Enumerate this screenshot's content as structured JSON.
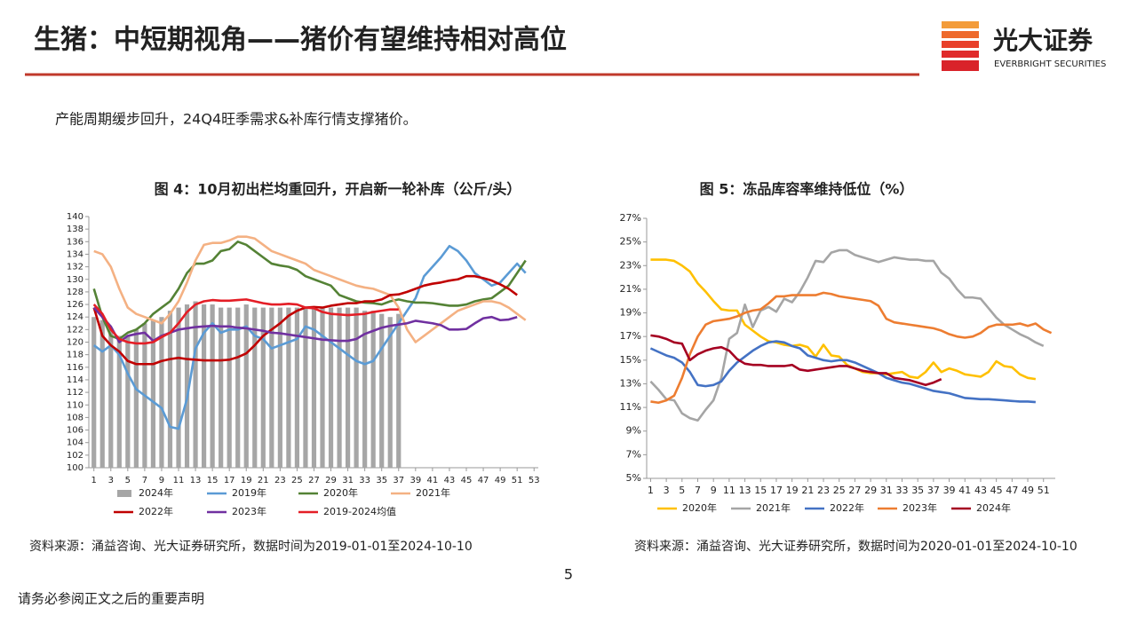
{
  "header": {
    "title": "生猪：中短期视角——猪价有望维持相对高位",
    "logo_name": "光大证券",
    "logo_sub": "EVERBRIGHT SECURITIES"
  },
  "summary": "产能周期缓步回升，24Q4旺季需求&补库行情支撑猪价。",
  "chart_data": [
    {
      "type": "combo",
      "title": "图 4：10月初出栏均重回升，开启新一轮补库（公斤/头）",
      "x": [
        1,
        2,
        3,
        4,
        5,
        6,
        7,
        8,
        9,
        10,
        11,
        12,
        13,
        14,
        15,
        16,
        17,
        18,
        19,
        20,
        21,
        22,
        23,
        24,
        25,
        26,
        27,
        28,
        29,
        30,
        31,
        32,
        33,
        34,
        35,
        36,
        37,
        38,
        39,
        40,
        41,
        42,
        43,
        44,
        45,
        46,
        47,
        48,
        49,
        50,
        51,
        52,
        53
      ],
      "xlim": [
        0.4,
        53.5
      ],
      "xticks": [
        1,
        3,
        5,
        7,
        9,
        11,
        13,
        15,
        17,
        19,
        21,
        23,
        25,
        27,
        29,
        31,
        33,
        35,
        37,
        39,
        41,
        43,
        45,
        47,
        49,
        51,
        53
      ],
      "ylim": [
        100,
        140
      ],
      "yticks": [
        100,
        102,
        104,
        106,
        108,
        110,
        112,
        114,
        116,
        118,
        120,
        122,
        124,
        126,
        128,
        130,
        132,
        134,
        136,
        138,
        140
      ],
      "series": [
        {
          "name": "2024年",
          "type": "bar",
          "color": "#a6a6a6",
          "values": [
            124,
            123.5,
            122,
            121,
            121,
            122,
            123,
            123.5,
            124,
            125,
            125.5,
            126,
            126.5,
            126,
            126,
            125.5,
            125.5,
            125.5,
            126,
            125.5,
            125.5,
            125.5,
            125.5,
            125.5,
            125.5,
            125.5,
            125.5,
            125.5,
            125.5,
            125.5,
            125.5,
            125.5,
            125,
            125,
            124.5,
            124,
            124.5,
            null,
            null,
            null,
            null,
            null,
            null,
            null,
            null,
            null,
            null,
            null,
            null,
            null,
            null,
            null,
            null
          ]
        },
        {
          "name": "2019年",
          "type": "line",
          "color": "#5b9bd5",
          "values": [
            119.5,
            118.5,
            119.5,
            118,
            115,
            112.5,
            111.5,
            110.5,
            109.5,
            106.5,
            106.2,
            111,
            119,
            121.5,
            123,
            121.5,
            122,
            122,
            122.5,
            121,
            120.5,
            119,
            119.5,
            120,
            120.5,
            122.5,
            122,
            121,
            120,
            119,
            118,
            117,
            116.5,
            117,
            119,
            121,
            123,
            125,
            127,
            130.5,
            132,
            133.5,
            135.3,
            134.5,
            133,
            131,
            130,
            129,
            129.5,
            131,
            132.5,
            131,
            null
          ]
        },
        {
          "name": "2020年",
          "type": "line",
          "color": "#548235",
          "values": [
            128.5,
            124,
            121,
            120.5,
            121.5,
            122,
            123,
            124.5,
            125.5,
            126.5,
            128.5,
            131,
            132.5,
            132.5,
            133,
            134.5,
            134.8,
            136,
            135.5,
            134.5,
            133.5,
            132.5,
            132.2,
            132,
            131.5,
            130.5,
            130,
            129.5,
            129,
            127.5,
            127,
            126.5,
            126.3,
            126.2,
            126,
            126.5,
            126.8,
            126.5,
            126.3,
            126.3,
            126.2,
            126,
            125.8,
            125.8,
            126,
            126.5,
            126.8,
            127,
            128,
            129,
            131,
            133,
            null
          ]
        },
        {
          "name": "2021年",
          "type": "line",
          "color": "#f4b183",
          "values": [
            134.5,
            134,
            132,
            128.5,
            125.5,
            124.5,
            124,
            123.5,
            123,
            124.5,
            126.5,
            129.5,
            133,
            135.5,
            135.8,
            135.8,
            136.2,
            136.8,
            136.8,
            136.5,
            135.5,
            134.5,
            134,
            133.5,
            133,
            132.5,
            131.5,
            131,
            130.5,
            130,
            129.5,
            129,
            128.7,
            128.5,
            128,
            127.5,
            125.5,
            122,
            120,
            121,
            122,
            123,
            124,
            125,
            125.5,
            126,
            126.5,
            126.5,
            126.2,
            125.5,
            124.5,
            123.5,
            null
          ]
        },
        {
          "name": "2022年",
          "type": "line",
          "color": "#c00000",
          "values": [
            125.5,
            121,
            119.5,
            118.5,
            117,
            116.5,
            116.5,
            116.5,
            117,
            117.3,
            117.5,
            117.3,
            117.2,
            117.1,
            117.1,
            117.1,
            117.2,
            117.6,
            118.2,
            119.5,
            121,
            122,
            123,
            124.2,
            125,
            125.5,
            125.6,
            125.5,
            125.8,
            126,
            126.2,
            126.2,
            126.5,
            126.5,
            126.8,
            127.5,
            127.6,
            128,
            128.5,
            129,
            129.3,
            129.5,
            129.8,
            130,
            130.5,
            130.5,
            130.2,
            129.8,
            129.2,
            128.5,
            127.5,
            null,
            null
          ]
        },
        {
          "name": "2023年",
          "type": "line",
          "color": "#7030a0",
          "values": [
            125.5,
            124,
            122.5,
            120,
            121,
            121.3,
            121.5,
            120.2,
            121,
            121.5,
            122,
            122.2,
            122.4,
            122.5,
            122.6,
            122.5,
            122.5,
            122.3,
            122.2,
            122,
            121.8,
            121.5,
            121.4,
            121.2,
            121,
            120.8,
            120.6,
            120.4,
            120.3,
            120.2,
            120.2,
            120.5,
            121.3,
            121.8,
            122.3,
            122.6,
            122.8,
            123,
            123.4,
            123.2,
            123,
            122.7,
            122,
            122,
            122.1,
            123,
            123.8,
            124,
            123.5,
            123.6,
            124,
            null,
            null
          ]
        },
        {
          "name": "2019-2024均值",
          "type": "line",
          "color": "#e41e26",
          "values": [
            126,
            124.5,
            122,
            120.5,
            120,
            119.8,
            119.8,
            120,
            120.8,
            121.5,
            123,
            124.8,
            126,
            126.5,
            126.7,
            126.6,
            126.6,
            126.7,
            126.8,
            126.5,
            126.2,
            126,
            126,
            126.1,
            126,
            125.5,
            125.4,
            124.8,
            124.5,
            124.4,
            124.3,
            124.4,
            124.5,
            124.8,
            125,
            125.2,
            125.2,
            null,
            null,
            null,
            null,
            null,
            null,
            null,
            null,
            null,
            null,
            null,
            null,
            null,
            null,
            null,
            null
          ]
        }
      ],
      "source": "资料来源：涌益咨询、光大证券研究所，数据时间为2019-01-01至2024-10-10"
    },
    {
      "type": "line",
      "title": "图 5：冻品库容率维持低位（%）",
      "x": [
        1,
        2,
        3,
        4,
        5,
        6,
        7,
        8,
        9,
        10,
        11,
        12,
        13,
        14,
        15,
        16,
        17,
        18,
        19,
        20,
        21,
        22,
        23,
        24,
        25,
        26,
        27,
        28,
        29,
        30,
        31,
        32,
        33,
        34,
        35,
        36,
        37,
        38,
        39,
        40,
        41,
        42,
        43,
        44,
        45,
        46,
        47,
        48,
        49,
        50,
        51,
        52
      ],
      "xlim": [
        0.5,
        52.5
      ],
      "xticks": [
        1,
        3,
        5,
        7,
        9,
        11,
        13,
        15,
        17,
        19,
        21,
        23,
        25,
        27,
        29,
        31,
        33,
        35,
        37,
        39,
        41,
        43,
        45,
        47,
        49,
        51
      ],
      "ylim": [
        5,
        27
      ],
      "yticks": [
        {
          "value": 5,
          "label": "5%"
        },
        {
          "value": 7,
          "label": "7%"
        },
        {
          "value": 9,
          "label": "9%"
        },
        {
          "value": 11,
          "label": "11%"
        },
        {
          "value": 13,
          "label": "13%"
        },
        {
          "value": 15,
          "label": "15%"
        },
        {
          "value": 17,
          "label": "17%"
        },
        {
          "value": 19,
          "label": "19%"
        },
        {
          "value": 21,
          "label": "21%"
        },
        {
          "value": 23,
          "label": "23%"
        },
        {
          "value": 25,
          "label": "25%"
        },
        {
          "value": 27,
          "label": "27%"
        }
      ],
      "series": [
        {
          "name": "2020年",
          "color": "#ffc000",
          "values": [
            23.5,
            23.5,
            23.5,
            23.4,
            23,
            22.5,
            21.5,
            20.8,
            20,
            19.3,
            19.2,
            19.2,
            18,
            17.5,
            17,
            16.6,
            16.5,
            16.3,
            16.2,
            16.3,
            16.1,
            15.3,
            16.3,
            15.4,
            15.3,
            14.6,
            14.3,
            14,
            13.9,
            13.9,
            13.8,
            13.9,
            14,
            13.6,
            13.5,
            14,
            14.8,
            14,
            14.3,
            14.1,
            13.8,
            13.7,
            13.6,
            14,
            14.9,
            14.5,
            14.4,
            13.8,
            13.5,
            13.4,
            null,
            null
          ]
        },
        {
          "name": "2021年",
          "color": "#a5a5a5",
          "values": [
            13.2,
            12.5,
            11.7,
            11.6,
            10.5,
            10.1,
            9.9,
            10.8,
            11.6,
            13.5,
            16.8,
            17.3,
            19.7,
            17.8,
            19.2,
            19.5,
            19.1,
            20.2,
            19.9,
            20.8,
            22,
            23.4,
            23.3,
            24.1,
            24.3,
            24.3,
            23.9,
            23.7,
            23.5,
            23.3,
            23.5,
            23.7,
            23.6,
            23.5,
            23.5,
            23.4,
            23.4,
            22.4,
            21.9,
            21,
            20.3,
            20.3,
            20.2,
            19.4,
            18.6,
            18,
            17.6,
            17.2,
            16.9,
            16.5,
            16.2,
            null
          ]
        },
        {
          "name": "2022年",
          "color": "#4472c4",
          "values": [
            16,
            15.7,
            15.4,
            15.2,
            14.8,
            14,
            12.9,
            12.8,
            12.9,
            13.2,
            14.1,
            14.8,
            15.3,
            15.8,
            16.2,
            16.5,
            16.6,
            16.5,
            16.2,
            16,
            15.4,
            15.2,
            15,
            14.9,
            15,
            15,
            14.8,
            14.5,
            14.2,
            13.9,
            13.5,
            13.3,
            13.1,
            13,
            12.8,
            12.6,
            12.4,
            12.3,
            12.2,
            12,
            11.8,
            11.75,
            11.7,
            11.7,
            11.65,
            11.6,
            11.55,
            11.5,
            11.5,
            11.45,
            null,
            null
          ]
        },
        {
          "name": "2023年",
          "color": "#ed7d31",
          "values": [
            11.5,
            11.4,
            11.6,
            12,
            13.5,
            15.5,
            17,
            18,
            18.3,
            18.4,
            18.5,
            18.7,
            19,
            19.2,
            19.3,
            19.8,
            20.4,
            20.4,
            20.5,
            20.5,
            20.5,
            20.5,
            20.7,
            20.6,
            20.4,
            20.3,
            20.2,
            20.1,
            20,
            19.6,
            18.5,
            18.2,
            18.1,
            18,
            17.9,
            17.8,
            17.7,
            17.5,
            17.2,
            17,
            16.9,
            17,
            17.3,
            17.8,
            18,
            18,
            18,
            18.1,
            17.9,
            18.1,
            17.6,
            17.3
          ]
        },
        {
          "name": "2024年",
          "color": "#a50021",
          "values": [
            17.1,
            17,
            16.8,
            16.5,
            16.4,
            15,
            15.5,
            15.8,
            16,
            16.1,
            15.8,
            15.1,
            14.7,
            14.6,
            14.6,
            14.5,
            14.5,
            14.5,
            14.6,
            14.2,
            14.1,
            14.2,
            14.3,
            14.4,
            14.5,
            14.5,
            14.3,
            14.1,
            14,
            13.9,
            13.9,
            13.5,
            13.4,
            13.3,
            13.1,
            12.9,
            13.1,
            13.4,
            null,
            null,
            null,
            null,
            null,
            null,
            null,
            null,
            null,
            null,
            null,
            null,
            null,
            null
          ]
        }
      ],
      "source": "资料来源：涌益咨询、光大证券研究所，数据时间为2020-01-01至2024-10-10"
    }
  ],
  "page_number": "5",
  "footer": "请务必参阅正文之后的重要声明"
}
